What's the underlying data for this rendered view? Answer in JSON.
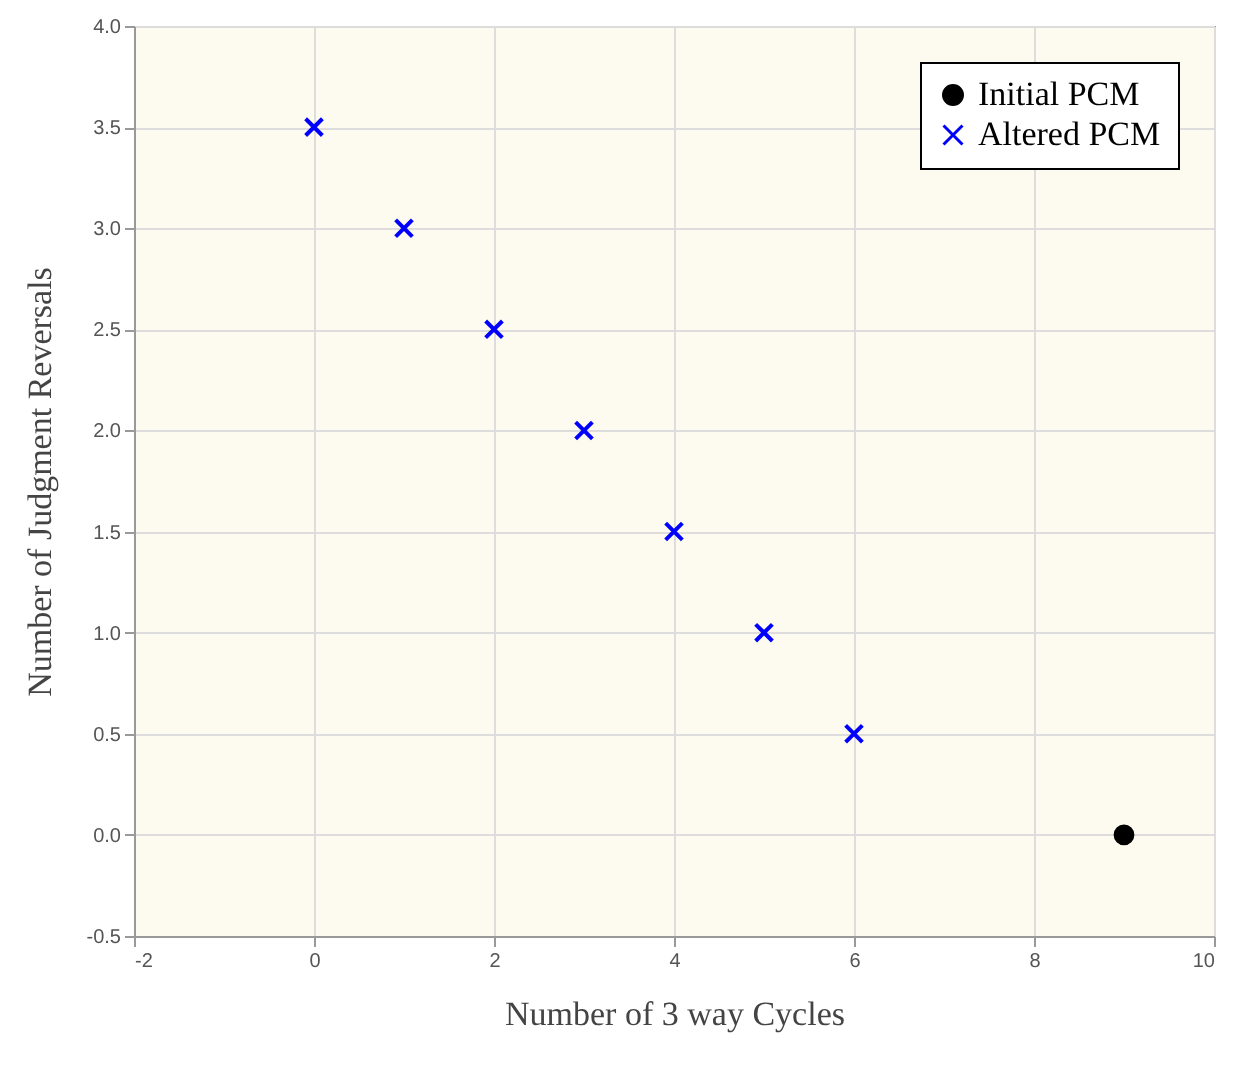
{
  "chart_data": {
    "type": "scatter",
    "xlabel": "Number of 3 way Cycles",
    "ylabel": "Number of Judgment Reversals",
    "xlim": [
      -2,
      10
    ],
    "xticks": [
      -2,
      0,
      2,
      4,
      6,
      8,
      10
    ],
    "ylim": [
      -0.5,
      4
    ],
    "yticks": [
      -0.5,
      {
        "value": 0,
        "label": "0.0"
      },
      0.5,
      {
        "value": 1,
        "label": "1.0"
      },
      1.5,
      {
        "value": 2,
        "label": "2.0"
      },
      2.5,
      {
        "value": 3,
        "label": "3.0"
      },
      3.5,
      {
        "value": 4,
        "label": "4.0"
      }
    ],
    "grid": true,
    "legend": "top right",
    "series": [
      {
        "name": "Initial  PCM",
        "color": "#000000",
        "marker": "circle",
        "x": [
          9
        ],
        "values": [
          0
        ]
      },
      {
        "name": "Altered PCM",
        "color": "#0000ff",
        "marker": "cross",
        "x": [
          0,
          1,
          2,
          3,
          4,
          5,
          6
        ],
        "values": [
          3.5,
          3,
          2.5,
          2,
          1.5,
          1,
          0.5
        ]
      }
    ]
  }
}
